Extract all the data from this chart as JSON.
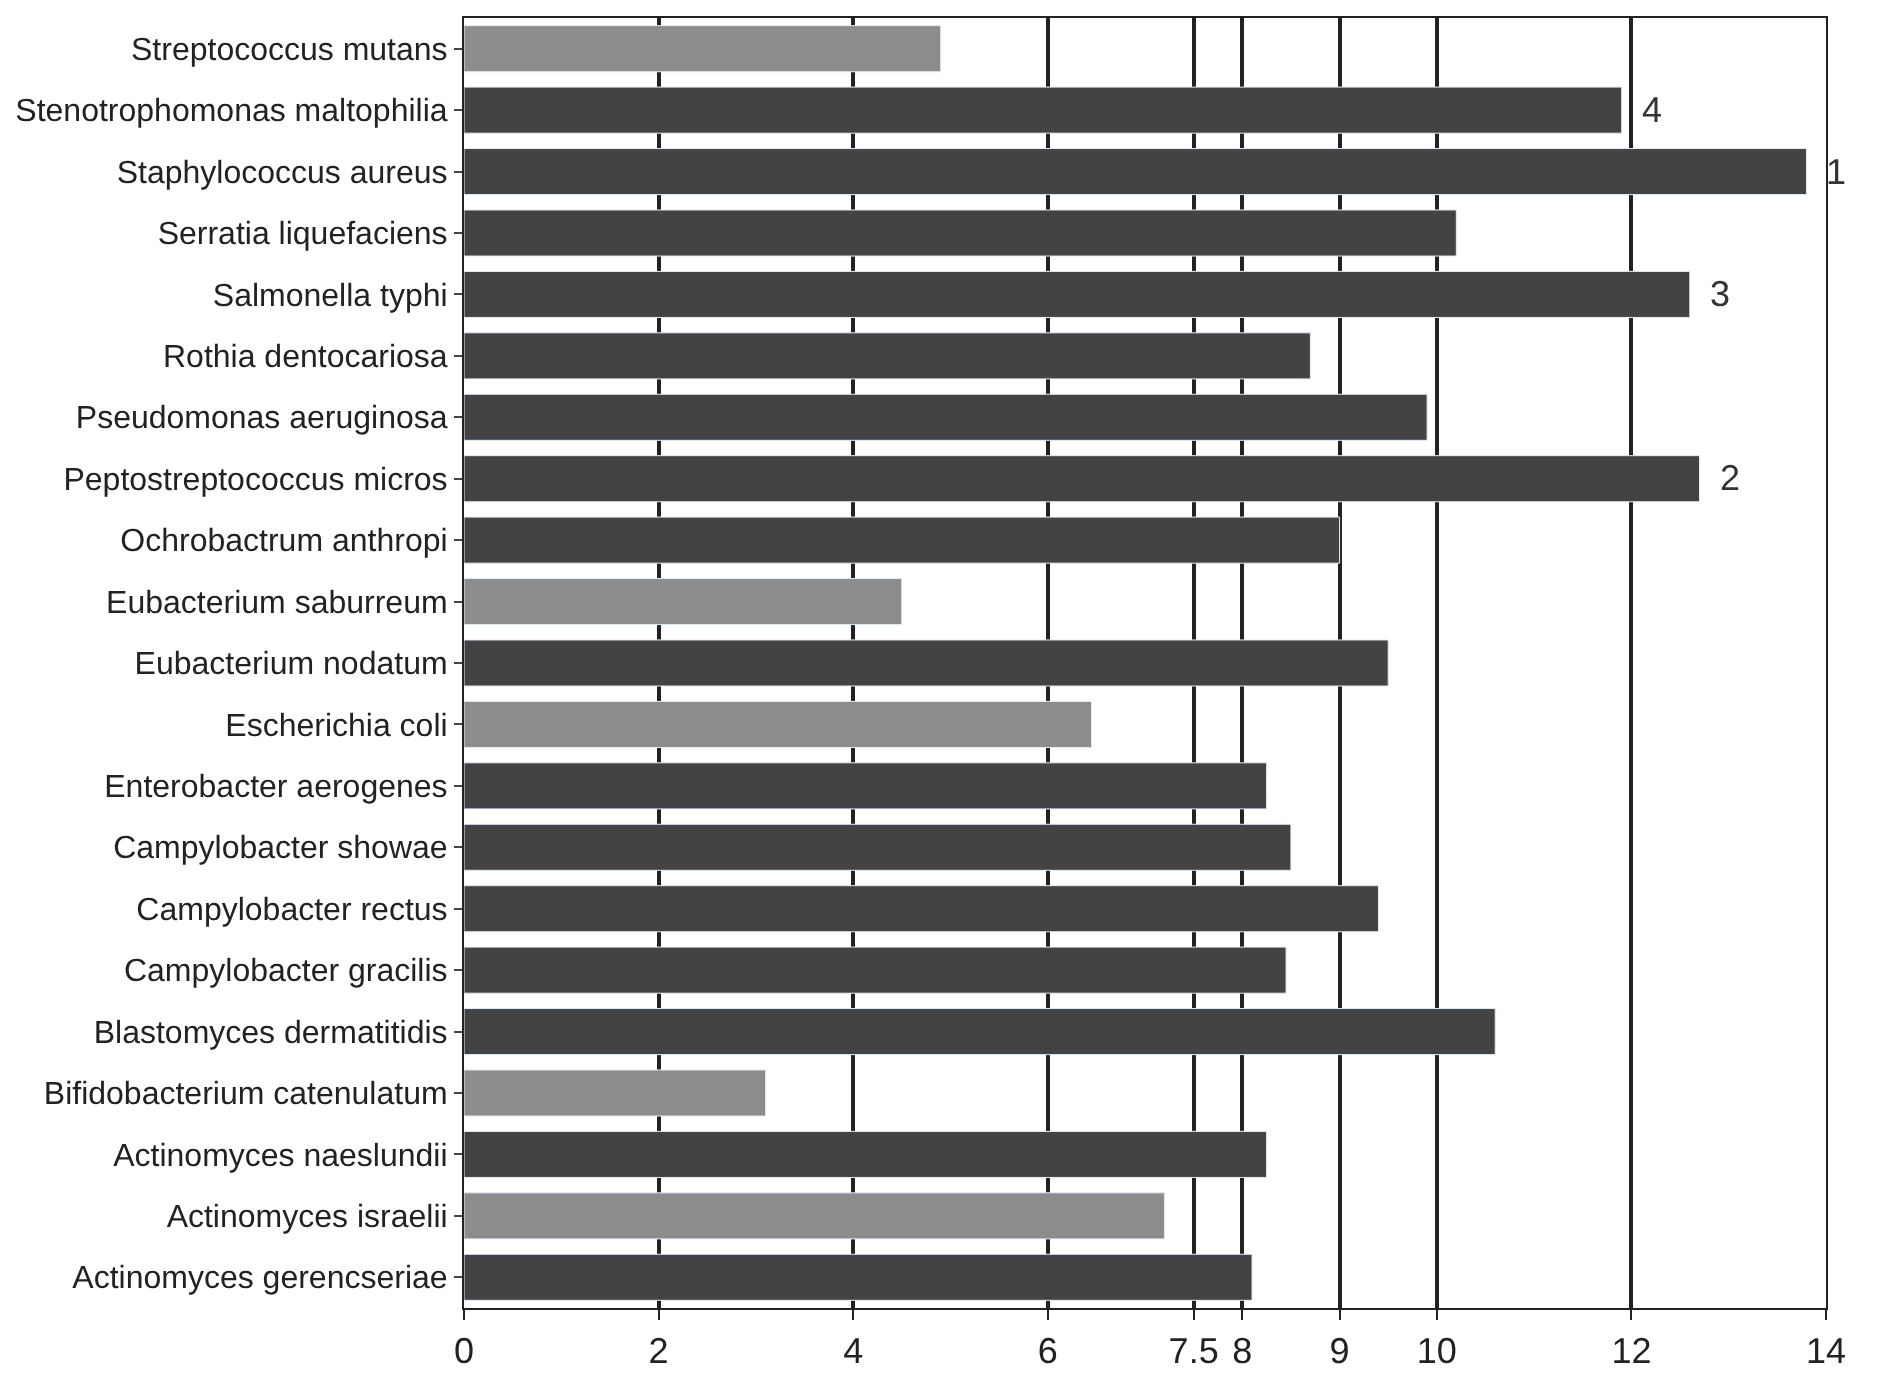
{
  "chart_data": {
    "type": "bar",
    "orientation": "horizontal",
    "categories": [
      "Streptococcus mutans",
      "Stenotrophomonas maltophilia",
      "Staphylococcus aureus",
      "Serratia liquefaciens",
      "Salmonella typhi",
      "Rothia dentocariosa",
      "Pseudomonas aeruginosa",
      "Peptostreptococcus micros",
      "Ochrobactrum anthropi",
      "Eubacterium saburreum",
      "Eubacterium nodatum",
      "Escherichia coli",
      "Enterobacter aerogenes",
      "Campylobacter showae",
      "Campylobacter rectus",
      "Campylobacter gracilis",
      "Blastomyces dermatitidis",
      "Bifidobacterium catenulatum",
      "Actinomyces naeslundii",
      "Actinomyces israelii",
      "Actinomyces gerencseriae"
    ],
    "values": [
      4.9,
      11.9,
      13.8,
      10.2,
      12.6,
      8.7,
      9.9,
      12.7,
      9.0,
      4.5,
      9.5,
      6.45,
      8.25,
      8.5,
      9.4,
      8.45,
      10.6,
      3.1,
      8.25,
      7.2,
      8.1
    ],
    "colors": [
      "#8c8c8c",
      "#434343",
      "#434343",
      "#434343",
      "#434343",
      "#434343",
      "#434343",
      "#434343",
      "#434343",
      "#8c8c8c",
      "#434343",
      "#8c8c8c",
      "#434343",
      "#434343",
      "#434343",
      "#434343",
      "#434343",
      "#8c8c8c",
      "#434343",
      "#8c8c8c",
      "#434343"
    ],
    "xlim": [
      0,
      14
    ],
    "xticks": [
      0,
      2,
      4,
      6,
      7.5,
      8,
      9,
      10,
      12,
      14
    ],
    "grid": "x",
    "annotations": [
      {
        "text": "4",
        "x": 11.9,
        "y": "Stenotrophomonas maltophilia"
      },
      {
        "text": "1",
        "x": 13.8,
        "y": "Staphylococcus aureus"
      },
      {
        "text": "3",
        "x": 12.6,
        "y": "Salmonella typhi"
      },
      {
        "text": "2",
        "x": 12.7,
        "y": "Peptostreptococcus micros"
      }
    ]
  }
}
